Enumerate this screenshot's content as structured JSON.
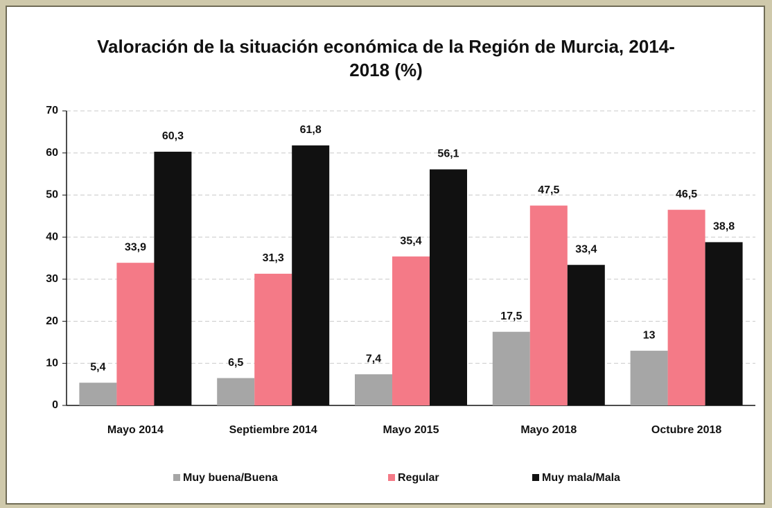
{
  "chart_data": {
    "type": "bar",
    "title": "Valoración de la situación económica de la Región de Murcia, 2014-2018 (%)",
    "categories": [
      "Mayo 2014",
      "Septiembre 2014",
      "Mayo 2015",
      "Mayo 2018",
      "Octubre 2018"
    ],
    "series": [
      {
        "name": "Muy buena/Buena",
        "color": "#a6a6a6",
        "values": [
          5.4,
          6.5,
          7.4,
          17.5,
          13
        ],
        "value_labels": [
          "5,4",
          "6,5",
          "7,4",
          "17,5",
          "13"
        ]
      },
      {
        "name": "Regular",
        "color": "#f47a87",
        "values": [
          33.9,
          31.3,
          35.4,
          47.5,
          46.5
        ],
        "value_labels": [
          "33,9",
          "31,3",
          "35,4",
          "47,5",
          "46,5"
        ]
      },
      {
        "name": "Muy mala/Mala",
        "color": "#111111",
        "values": [
          60.3,
          61.8,
          56.1,
          33.4,
          38.8
        ],
        "value_labels": [
          "60,3",
          "61,8",
          "56,1",
          "33,4",
          "38,8"
        ]
      }
    ],
    "ylim": [
      0,
      70
    ],
    "yticks": [
      0,
      10,
      20,
      30,
      40,
      50,
      60,
      70
    ],
    "grid": true,
    "legend": "bottom"
  }
}
